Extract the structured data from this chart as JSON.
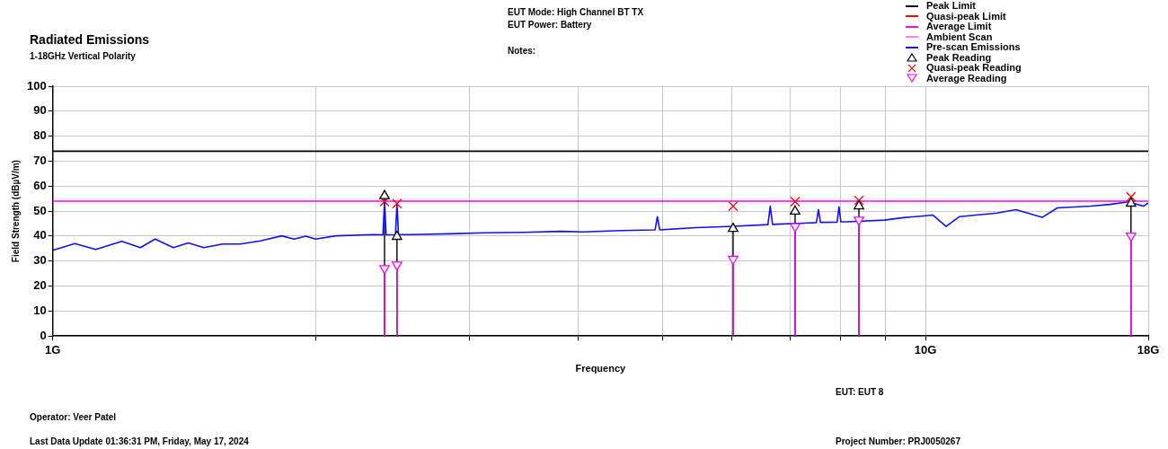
{
  "chart_data": {
    "type": "line",
    "title": "Radiated Emissions",
    "subtitle": "1-18GHz Vertical Polarity",
    "xlabel": "Frequency",
    "ylabel": "Field Strength (dBµV/m)",
    "annotations": [
      "EUT Mode: High Channel BT TX",
      "EUT Power: Battery",
      "Notes:",
      "EUT: EUT 8",
      "Operator: Veer Patel",
      "Last Data Update 01:36:31 PM, Friday, May 17, 2024",
      "Project Number: PRJ0050267"
    ],
    "log": "x",
    "grid": true,
    "legend": "top right",
    "xlim": [
      1,
      18
    ],
    "xticks": [
      {
        "value": 1,
        "label": "1G"
      },
      {
        "value": 2,
        "label": null
      },
      {
        "value": 3,
        "label": null
      },
      {
        "value": 4,
        "label": null
      },
      {
        "value": 5,
        "label": null
      },
      {
        "value": 6,
        "label": null
      },
      {
        "value": 7,
        "label": null
      },
      {
        "value": 8,
        "label": null
      },
      {
        "value": 9,
        "label": null
      },
      {
        "value": 10,
        "label": "10G"
      },
      {
        "value": 18,
        "label": "18G"
      }
    ],
    "ylim": [
      0,
      100
    ],
    "yticks": [
      0,
      10,
      20,
      30,
      40,
      50,
      60,
      70,
      80,
      90,
      100
    ],
    "series": [
      {
        "name": "Peak Limit",
        "color": "#000000",
        "x": [
          1,
          18
        ],
        "values": [
          74,
          74
        ]
      },
      {
        "name": "Quasi-peak Limit",
        "color": "#ff0000"
      },
      {
        "name": "Average Limit",
        "color": "#ff00ff",
        "x": [
          1,
          18
        ],
        "values": [
          54,
          54
        ]
      },
      {
        "name": "Ambient Scan",
        "color": "#ff80ff"
      },
      {
        "name": "Pre-scan Emissions",
        "color": "#1010ff",
        "x": [
          1.0,
          1.06,
          1.12,
          1.2,
          1.26,
          1.31,
          1.375,
          1.43,
          1.49,
          1.565,
          1.64,
          1.73,
          1.83,
          1.89,
          1.95,
          2.0,
          2.11,
          2.33,
          2.39,
          2.4,
          2.41,
          2.47,
          2.48,
          2.49,
          2.57,
          2.84,
          3.13,
          3.46,
          3.82,
          4.06,
          4.48,
          4.9,
          4.93,
          4.96,
          5.46,
          6.03,
          6.6,
          6.64,
          6.68,
          7.36,
          7.5,
          7.54,
          7.58,
          7.92,
          7.96,
          8.0,
          8.12,
          8.97,
          9.43,
          10.2,
          10.56,
          10.94,
          12.08,
          12.69,
          13.61,
          14.16,
          15.48,
          16.27,
          17.09,
          17.78,
          18
        ],
        "values": [
          34.3,
          37.0,
          34.7,
          37.9,
          35.4,
          38.8,
          35.4,
          37.3,
          35.4,
          36.8,
          36.8,
          38.1,
          40.1,
          38.8,
          40.0,
          38.8,
          40.1,
          40.6,
          40.5,
          54,
          40.5,
          40.6,
          53,
          40.6,
          40.6,
          40.9,
          41.3,
          41.5,
          41.9,
          41.7,
          42.2,
          42.5,
          47.8,
          42.5,
          43.4,
          43.9,
          44.6,
          52.0,
          44.7,
          45.3,
          45.4,
          50.6,
          45.5,
          45.6,
          51.7,
          45.7,
          45.7,
          46.4,
          47.4,
          48.4,
          43.9,
          47.8,
          49.2,
          50.6,
          47.5,
          51.3,
          52.0,
          52.7,
          53.7,
          52.0,
          53.3
        ]
      },
      {
        "name": "Peak Reading",
        "type": "lollipop",
        "marker": "triangle",
        "color": "#000000",
        "x": [
          2.4,
          2.48,
          6.02,
          7.09,
          8.39,
          17.2
        ],
        "values": [
          56.1,
          39.8,
          43.0,
          49.9,
          52.0,
          53.1
        ]
      },
      {
        "name": "Quasi-peak Reading",
        "type": "scatter",
        "marker": "cross",
        "color": "#ff0000",
        "x": [
          2.4,
          2.48,
          6.02,
          7.09,
          8.39,
          17.2
        ],
        "values": [
          53.8,
          53.0,
          52.0,
          53.8,
          54.3,
          55.7
        ]
      },
      {
        "name": "Average Reading",
        "type": "lollipop",
        "marker": "triangle-down",
        "color": "#ff00ff",
        "x": [
          2.4,
          2.48,
          6.02,
          7.09,
          8.39,
          17.2
        ],
        "values": [
          27.1,
          28.5,
          30.8,
          43.9,
          46.5,
          40.1
        ]
      }
    ]
  }
}
